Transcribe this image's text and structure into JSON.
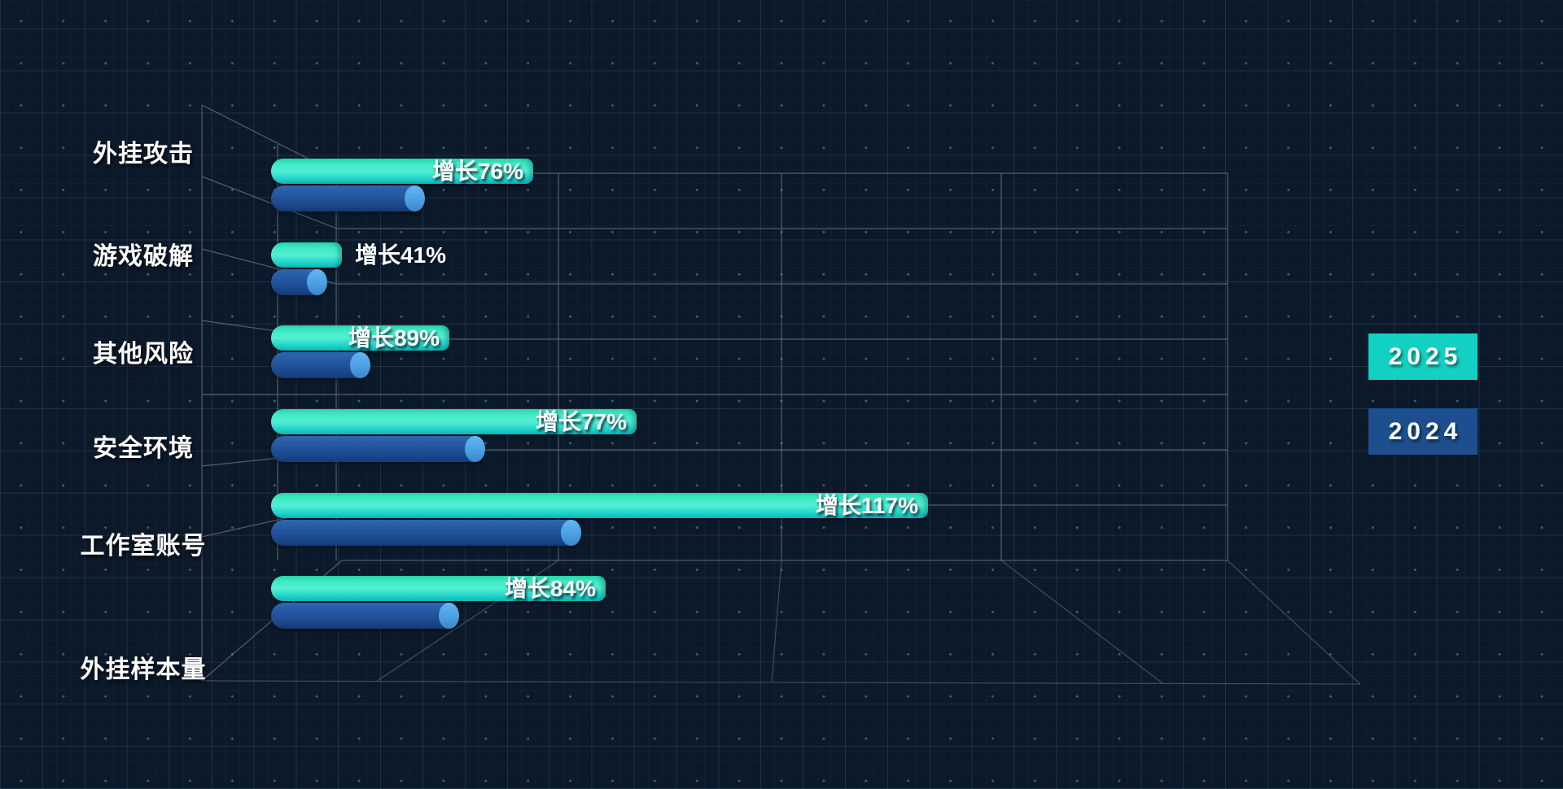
{
  "chart_data": {
    "type": "bar",
    "orientation": "horizontal",
    "style": "3d-perspective-cylinders",
    "title": "",
    "xlabel": "",
    "ylabel": "",
    "axis_values_shown": false,
    "grid": "3d wireframe box, perspective vanishing point right-center",
    "legend_position": "right",
    "categories": [
      "外挂攻击",
      "游戏破解",
      "其他风险",
      "安全环境",
      "工作室账号",
      "外挂样本量"
    ],
    "series": [
      {
        "name": "2025",
        "color": "#14d2c1",
        "values": [
          322,
          87,
          219,
          449,
          807,
          411
        ],
        "value_unit": "relative-length-px",
        "data_labels": [
          "增长76%",
          "增长41%",
          "增长89%",
          "增长77%",
          "增长117%",
          "增长84%"
        ],
        "label_inside_bar": [
          true,
          false,
          true,
          true,
          true,
          true
        ]
      },
      {
        "name": "2024",
        "color": "#1d4f8e",
        "values": [
          187,
          67,
          120,
          261,
          379,
          229
        ],
        "value_unit": "relative-length-px",
        "data_labels": [
          "",
          "",
          "",
          "",
          "",
          ""
        ]
      }
    ],
    "growth_percent": [
      76,
      41,
      89,
      77,
      117,
      84
    ]
  },
  "legend": {
    "items": [
      {
        "label": "2025",
        "color": "#12d1c2"
      },
      {
        "label": "2024",
        "color": "#1d4f8e"
      }
    ]
  },
  "colors": {
    "background": "#0c1929",
    "wireframe": "#98a0a8",
    "bar_2025_top": "#2bdfae",
    "bar_2025_mid": "#53efd4",
    "bar_2025_bottom": "#0fc0c0",
    "bar_2024_top": "#2e66ae",
    "bar_2024_bottom": "#143a74",
    "bar_2024_cap": "#4ba0e2",
    "text": "#ffffff"
  }
}
